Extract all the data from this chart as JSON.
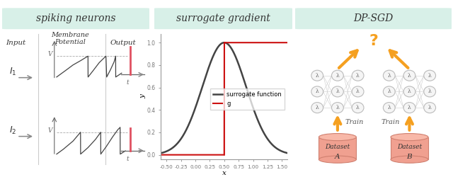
{
  "title_left": "spiking neurons",
  "title_mid": "surrogate gradient",
  "title_right": "DP-SGD",
  "title_bg": "#d8f0e8",
  "title_fontsize": 10,
  "spike_color": "#e05060",
  "orange_color": "#f5a020",
  "dataset_color": "#f0a090",
  "surrogate_color": "#444444",
  "g_color": "#cc1111",
  "panel_bg": "#ffffff",
  "divider_color": "#cccccc",
  "axis_color": "#666666",
  "text_color": "#333333",
  "conn_color": "#bbbbbb",
  "node_color": "#e8e8e8",
  "node_edge": "#aaaaaa"
}
